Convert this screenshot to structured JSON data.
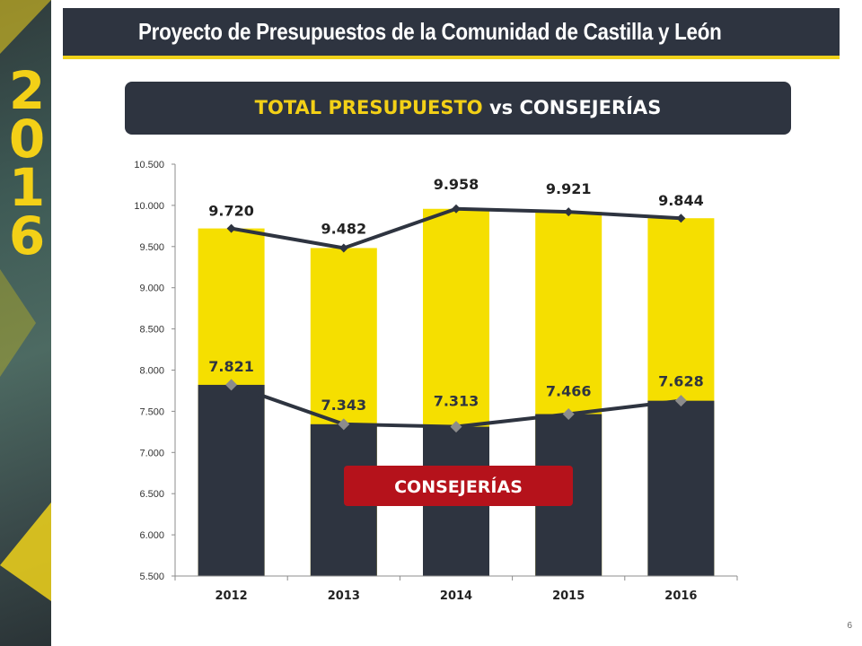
{
  "header": {
    "title": "Proyecto de Presupuestos de la Comunidad de Castilla y León"
  },
  "side": {
    "year_digits": [
      "2",
      "0",
      "1",
      "6"
    ]
  },
  "subtitle": {
    "part1": "TOTAL PRESUPUESTO",
    "part2": " vs ",
    "part3": "CONSEJERÍAS"
  },
  "page_number": "6",
  "colors": {
    "brand_dark": "#2e3440",
    "brand_yellow": "#f3d017",
    "bar_total": "#f5df00",
    "bar_consejerias": "#2e3440",
    "label_red": "#b5121b",
    "total_line": "#2e3440",
    "consejerias_marker": "#8c8c8c"
  },
  "chart_data": {
    "type": "bar",
    "categories": [
      "2012",
      "2013",
      "2014",
      "2015",
      "2016"
    ],
    "ylim": [
      5500,
      10500
    ],
    "yticks": [
      5500,
      6000,
      6500,
      7000,
      7500,
      8000,
      8500,
      9000,
      9500,
      10000,
      10500
    ],
    "ytick_labels": [
      "5.500",
      "6.000",
      "6.500",
      "7.000",
      "7.500",
      "8.000",
      "8.500",
      "9.000",
      "9.500",
      "10.000",
      "10.500"
    ],
    "series": [
      {
        "values": [
          9720,
          9482,
          9958,
          9921,
          9844
        ],
        "labels": [
          "9.720",
          "9.482",
          "9.958",
          "9.921",
          "9.844"
        ]
      },
      {
        "name": "CONSEJERÍAS",
        "values": [
          7821,
          7343,
          7313,
          7466,
          7628
        ],
        "labels": [
          "7.821",
          "7.343",
          "7.313",
          "7.466",
          "7.628"
        ]
      }
    ],
    "grid": false,
    "xlabel": "",
    "ylabel": ""
  }
}
